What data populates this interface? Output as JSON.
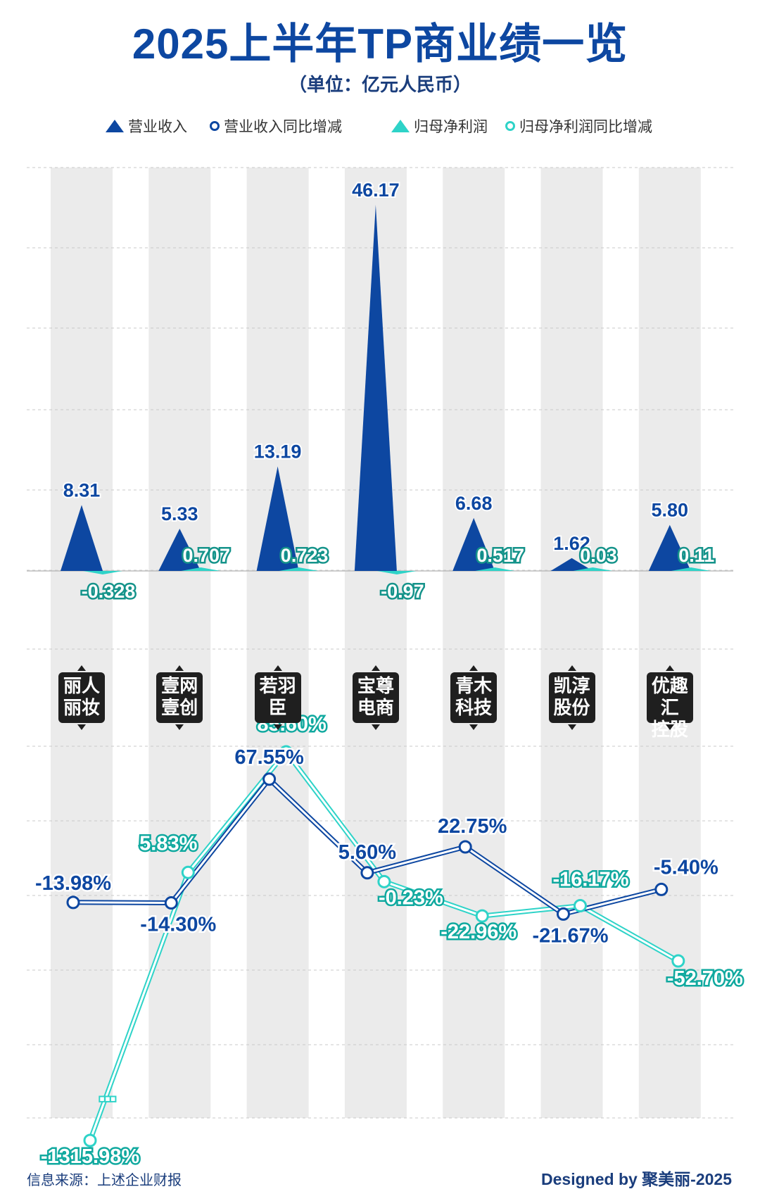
{
  "header": {
    "title": "2025上半年TP商业绩一览",
    "subtitle": "（单位：亿元人民币）"
  },
  "legend": {
    "revenue": "营业收入",
    "revenue_yoy": "营业收入同比增减",
    "profit": "归母净利润",
    "profit_yoy": "归母净利润同比增减"
  },
  "colors": {
    "revenue": "#0d47a1",
    "profit": "#2ed3c8",
    "band": "#ebebeb"
  },
  "chart_data": {
    "type": "triangle-bar + line",
    "categories": [
      {
        "line1": "丽人",
        "line2": "丽妆"
      },
      {
        "line1": "壹网",
        "line2": "壹创"
      },
      {
        "line1": "若羽",
        "line2": "臣"
      },
      {
        "line1": "宝尊",
        "line2": "电商"
      },
      {
        "line1": "青木",
        "line2": "科技"
      },
      {
        "line1": "凯淳",
        "line2": "股份"
      },
      {
        "line1": "优趣汇",
        "line2": "控股"
      }
    ],
    "revenue": [
      8.31,
      5.33,
      13.19,
      46.17,
      6.68,
      1.62,
      5.8
    ],
    "revenue_labels": [
      "8.31",
      "5.33",
      "13.19",
      "46.17",
      "6.68",
      "1.62",
      "5.80"
    ],
    "profit": [
      -0.328,
      0.707,
      0.723,
      -0.97,
      0.517,
      0.03,
      0.11
    ],
    "profit_labels": [
      "-0.328",
      "0.707",
      "0.723",
      "-0.97",
      "0.517",
      "0.03",
      "0.11"
    ],
    "revenue_yoy": [
      -13.98,
      -14.3,
      67.55,
      5.6,
      22.75,
      -21.67,
      -5.4
    ],
    "revenue_yoy_labels": [
      "-13.98%",
      "-14.30%",
      "67.55%",
      "5.60%",
      "22.75%",
      "-21.67%",
      "-5.40%"
    ],
    "profit_yoy": [
      -1315.98,
      5.83,
      85.6,
      -0.23,
      -22.96,
      -16.17,
      -52.7
    ],
    "profit_yoy_labels": [
      "-1315.98%",
      "5.83%",
      "85.60%",
      "-0.23%",
      "-22.96%",
      "-16.17%",
      "-52.70%"
    ],
    "axis_break_label": "▪▪▪"
  },
  "footer": {
    "source": "信息来源：上述企业财报",
    "credit": "Designed by 聚美丽-2025"
  }
}
